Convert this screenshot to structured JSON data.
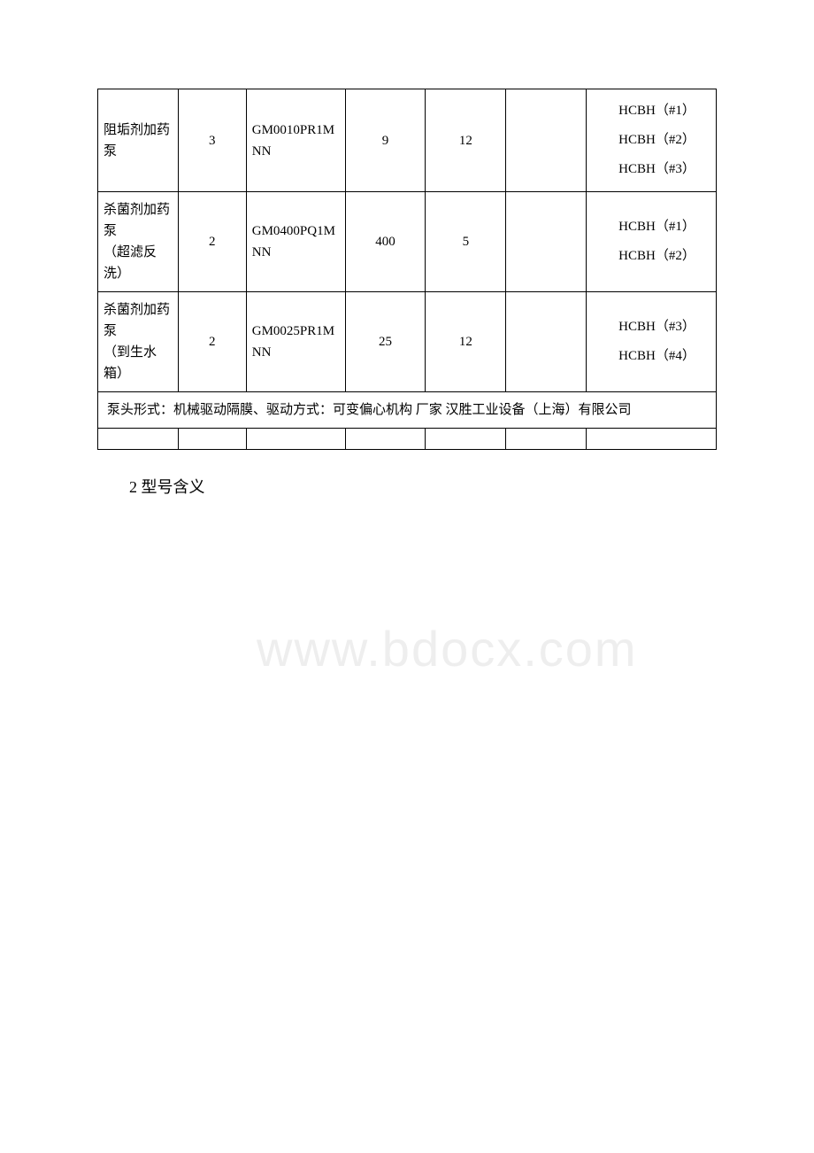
{
  "table": {
    "border_color": "#000000",
    "background_color": "#ffffff",
    "font_family": "SimSun",
    "font_size": 15,
    "columns_width_pct": [
      13,
      11,
      16,
      13,
      13,
      13,
      21
    ],
    "rows": [
      {
        "name": "阻垢剂加药泵",
        "qty": "3",
        "model": "GM0010PR1MNN",
        "val1": "9",
        "val2": "12",
        "val3": "",
        "codes": [
          "HCBH（#1）",
          "HCBH（#2）",
          "HCBH（#3）"
        ]
      },
      {
        "name": "杀菌剂加药泵",
        "name_sub": "（超滤反洗）",
        "qty": "2",
        "model": "GM0400PQ1MNN",
        "val1": "400",
        "val2": "5",
        "val3": "",
        "codes": [
          "HCBH（#1）",
          "HCBH（#2）"
        ]
      },
      {
        "name": "杀菌剂加药泵",
        "name_sub": "（到生水箱）",
        "qty": "2",
        "model": "GM0025PR1MNN",
        "val1": "25",
        "val2": "12",
        "val3": "",
        "codes": [
          "HCBH（#3）",
          "HCBH（#4）"
        ]
      }
    ],
    "footer_note": "泵头形式：机械驱动隔膜、驱动方式：可变偏心机构 厂家 汉胜工业设备（上海）有限公司"
  },
  "section_title": "2 型号含义",
  "watermark_text": "www.bdocx.com",
  "watermark_color": "#eeeeee"
}
